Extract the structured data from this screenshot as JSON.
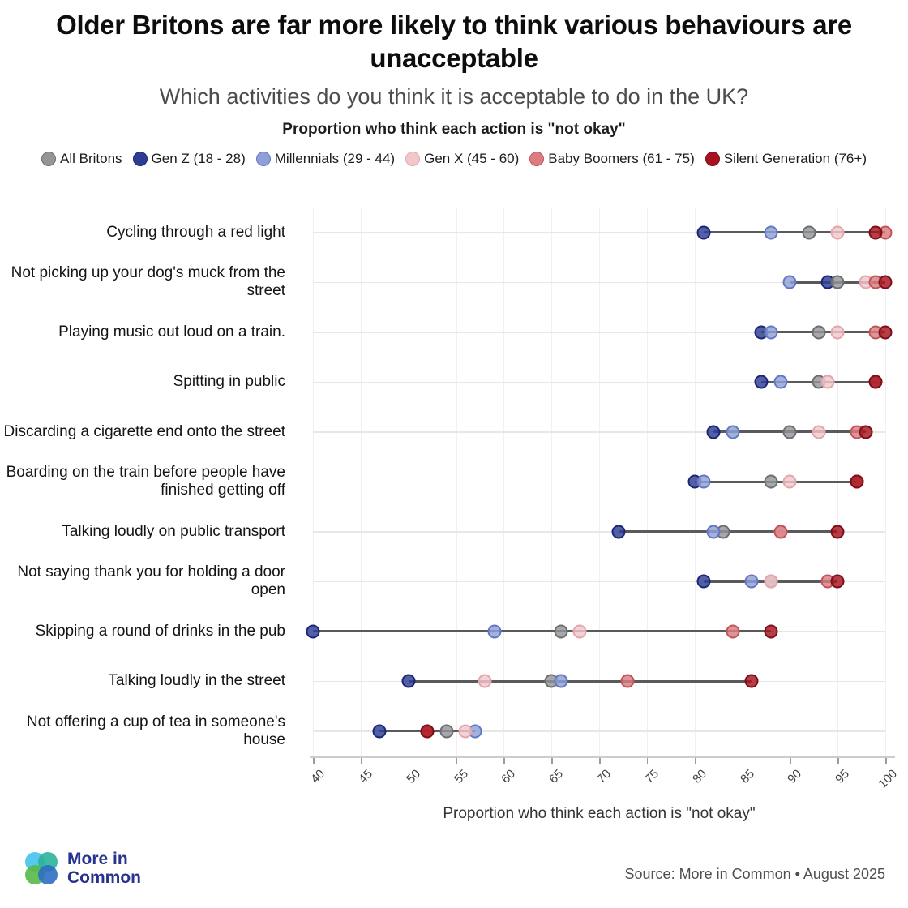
{
  "header": {
    "title": "Older Britons are far more likely to think various behaviours are unacceptable",
    "subtitle": "Which activities do you think it is acceptable to do in the UK?",
    "measure_label": "Proportion who think each action is \"not okay\""
  },
  "chart_data": {
    "type": "scatter",
    "subtype": "dumbbell-dot-plot",
    "title": "Older Britons are far more likely to think various behaviours are unacceptable",
    "xlabel": "Proportion who think each action is \"not okay\"",
    "ylabel": "",
    "xlim": [
      40,
      100
    ],
    "x_ticks": [
      40,
      45,
      50,
      55,
      60,
      65,
      70,
      75,
      80,
      85,
      90,
      95,
      100
    ],
    "grid": "light vertical gridlines, light row baselines",
    "legend_position": "top",
    "categories": [
      "Cycling through a red light",
      "Not picking up your dog's muck from the street",
      "Playing music out loud on a train.",
      "Spitting in public",
      "Discarding a cigarette end onto the street",
      "Boarding on the train before people have finished getting off",
      "Talking loudly on public transport",
      "Not saying thank you for holding a door open",
      "Skipping a round of drinks in the pub",
      "Talking loudly in the street",
      "Not offering a cup of tea in someone's house"
    ],
    "series": [
      {
        "name": "All Britons",
        "fill": "#939598",
        "stroke": "#6d6e71",
        "values": [
          92,
          95,
          93,
          93,
          90,
          88,
          83,
          88,
          66,
          65,
          54
        ]
      },
      {
        "name": "Gen Z (18 - 28)",
        "fill": "#2e3d93",
        "stroke": "#1a2678",
        "values": [
          81,
          94,
          87,
          87,
          82,
          80,
          72,
          81,
          40,
          50,
          47
        ]
      },
      {
        "name": "Millennials (29 - 44)",
        "fill": "#8fa0d8",
        "stroke": "#6377c4",
        "values": [
          88,
          90,
          88,
          89,
          84,
          81,
          82,
          86,
          59,
          66,
          57
        ]
      },
      {
        "name": "Gen X (45 - 60)",
        "fill": "#f1c7ca",
        "stroke": "#e3a6ab",
        "values": [
          95,
          98,
          95,
          94,
          93,
          90,
          89,
          88,
          68,
          58,
          56
        ]
      },
      {
        "name": "Baby Boomers (61 - 75)",
        "fill": "#d97d81",
        "stroke": "#c05459",
        "values": [
          100,
          99,
          99,
          99,
          97,
          97,
          89,
          94,
          84,
          73,
          52
        ]
      },
      {
        "name": "Silent Generation (76+)",
        "fill": "#a6131f",
        "stroke": "#7e0e17",
        "values": [
          99,
          100,
          100,
          99,
          98,
          97,
          95,
          95,
          88,
          86,
          52
        ]
      }
    ],
    "connector_color": "#5a5a5c"
  },
  "footer": {
    "brand_line1": "More in",
    "brand_line2": "Common",
    "source": "Source: More in Common • August 2025"
  }
}
